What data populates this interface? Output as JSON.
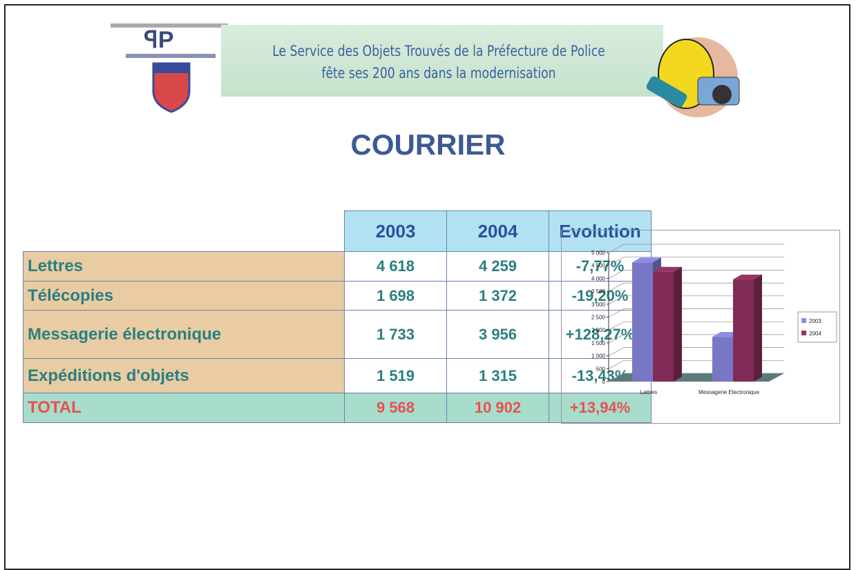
{
  "header": {
    "line1": "Le Service des Objets Trouvés de la Préfecture de Police",
    "line2": "fête ses 200 ans dans la modernisation"
  },
  "title": "COURRIER",
  "table": {
    "header": [
      "2003",
      "2004",
      "Evolution"
    ],
    "rows": [
      [
        "Lettres",
        "4 618",
        "4 259",
        "-7,77%"
      ],
      [
        "Télécopies",
        "1 698",
        "1 372",
        "-19,20%"
      ],
      [
        "Messagerie électronique",
        "1 733",
        "3 956",
        "+128,27%"
      ],
      [
        "Expéditions d'objets",
        "1 519",
        "1 315",
        "-13,43%"
      ]
    ],
    "total": [
      "TOTAL",
      "9 568",
      "10 902",
      "+13,94%"
    ]
  },
  "chart_data": {
    "type": "bar",
    "categories": [
      "Lettres",
      "Messagerie Electronique"
    ],
    "series": [
      {
        "name": "2003",
        "color": "#8c8ce6",
        "values": [
          4618,
          1733
        ]
      },
      {
        "name": "2004",
        "color": "#993366",
        "values": [
          4259,
          3956
        ]
      }
    ],
    "ylim": [
      0,
      5000
    ],
    "yticks": [
      0,
      500,
      {
        "value": 1000,
        "label": "1 000"
      },
      {
        "value": 1500,
        "label": "1 500"
      },
      {
        "value": 2000,
        "label": "2 000"
      },
      {
        "value": 2500,
        "label": "2 500"
      },
      {
        "value": 3000,
        "label": "3 000"
      },
      {
        "value": 3500,
        "label": "3 500"
      },
      {
        "value": 4000,
        "label": "4 000"
      },
      {
        "value": 4500,
        "label": "4 500"
      },
      {
        "value": 5000,
        "label": "5 000"
      }
    ],
    "grid": true,
    "legend": "right"
  }
}
